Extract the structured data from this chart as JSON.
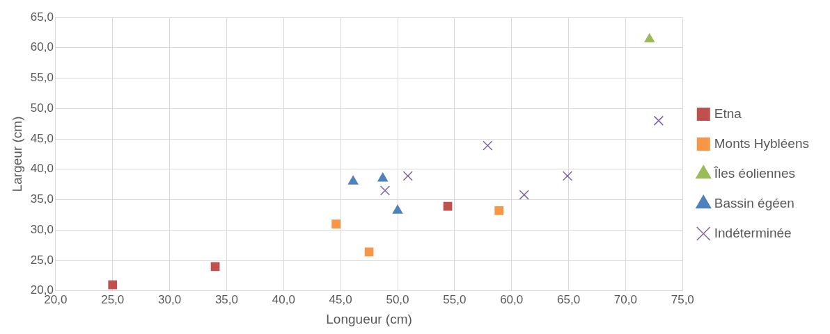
{
  "chart_data": {
    "type": "scatter",
    "xlabel": "Longueur (cm)",
    "ylabel": "Largeur (cm)",
    "legend": "right",
    "grid": true,
    "xlim": [
      20,
      75
    ],
    "ylim": [
      20,
      65
    ],
    "xticks": [
      {
        "value": 20,
        "label": "20,0"
      },
      {
        "value": 25,
        "label": "25,0"
      },
      {
        "value": 30,
        "label": "30,0"
      },
      {
        "value": 35,
        "label": "35,0"
      },
      {
        "value": 40,
        "label": "40,0"
      },
      {
        "value": 45,
        "label": "45,0"
      },
      {
        "value": 50,
        "label": "50,0"
      },
      {
        "value": 55,
        "label": "55,0"
      },
      {
        "value": 60,
        "label": "60,0"
      },
      {
        "value": 65,
        "label": "65,0"
      },
      {
        "value": 70,
        "label": "70,0"
      },
      {
        "value": 75,
        "label": "75,0"
      }
    ],
    "yticks": [
      {
        "value": 20,
        "label": "20,0"
      },
      {
        "value": 25,
        "label": "25,0"
      },
      {
        "value": 30,
        "label": "30,0"
      },
      {
        "value": 35,
        "label": "35,0"
      },
      {
        "value": 40,
        "label": "40,0"
      },
      {
        "value": 45,
        "label": "45,0"
      },
      {
        "value": 50,
        "label": "50,0"
      },
      {
        "value": 55,
        "label": "55,0"
      },
      {
        "value": 60,
        "label": "60,0"
      },
      {
        "value": 65,
        "label": "65,0"
      }
    ],
    "series": [
      {
        "name": "Etna",
        "color": "#c0504d",
        "marker": "square",
        "x": [
          25,
          34,
          54.4
        ],
        "values": [
          21,
          24,
          33.9
        ]
      },
      {
        "name": "Monts Hybléens",
        "color": "#f79646",
        "marker": "square",
        "x": [
          44.6,
          47.5,
          58.9
        ],
        "values": [
          31,
          26.4,
          33.2
        ]
      },
      {
        "name": "Îles éoliennes",
        "color": "#9bbb59",
        "marker": "triangle",
        "x": [
          72.1
        ],
        "values": [
          61.4
        ]
      },
      {
        "name": "Bassin égéen",
        "color": "#4f81bd",
        "marker": "triangle",
        "x": [
          46.1,
          48.7,
          50
        ],
        "values": [
          38,
          38.5,
          33.2
        ]
      },
      {
        "name": "Indéterminée",
        "color": "#8064a2",
        "marker": "cross",
        "x": [
          48.9,
          50.9,
          57.9,
          61.1,
          64.9,
          72.9
        ],
        "values": [
          36.5,
          38.9,
          43.9,
          35.8,
          38.9,
          48
        ]
      }
    ]
  }
}
